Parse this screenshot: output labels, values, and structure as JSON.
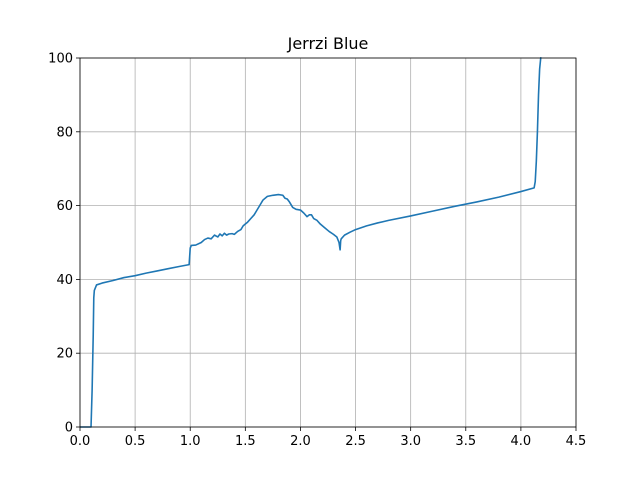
{
  "chart_data": {
    "type": "line",
    "title": "Jerrzi Blue",
    "xlabel": "",
    "ylabel": "",
    "xlim": [
      0.0,
      4.5
    ],
    "ylim": [
      0,
      100
    ],
    "grid": true,
    "x_ticks": [
      "0.0",
      "0.5",
      "1.0",
      "1.5",
      "2.0",
      "2.5",
      "3.0",
      "3.5",
      "4.0",
      "4.5"
    ],
    "y_ticks": [
      "0",
      "20",
      "40",
      "60",
      "80",
      "100"
    ],
    "series": [
      {
        "color": "#1f77b4",
        "x": [
          0.0,
          0.09,
          0.1,
          0.11,
          0.12,
          0.125,
          0.13,
          0.15,
          0.2,
          0.3,
          0.4,
          0.5,
          0.6,
          0.7,
          0.8,
          0.9,
          0.99,
          1.0,
          1.01,
          1.05,
          1.1,
          1.13,
          1.16,
          1.19,
          1.22,
          1.25,
          1.27,
          1.29,
          1.31,
          1.33,
          1.35,
          1.38,
          1.4,
          1.43,
          1.46,
          1.48,
          1.5,
          1.52,
          1.55,
          1.58,
          1.6,
          1.63,
          1.66,
          1.7,
          1.75,
          1.8,
          1.84,
          1.86,
          1.88,
          1.9,
          1.93,
          1.96,
          2.0,
          2.03,
          2.06,
          2.08,
          2.1,
          2.12,
          2.15,
          2.18,
          2.22,
          2.26,
          2.3,
          2.33,
          2.35,
          2.36,
          2.365,
          2.37,
          2.4,
          2.45,
          2.5,
          2.6,
          2.7,
          2.8,
          3.0,
          3.2,
          3.4,
          3.6,
          3.8,
          4.0,
          4.12,
          4.13,
          4.14,
          4.15,
          4.16,
          4.17,
          4.18
        ],
        "y": [
          0,
          0,
          0,
          10,
          25,
          35,
          37,
          38.5,
          39.0,
          39.7,
          40.5,
          41.0,
          41.7,
          42.3,
          42.9,
          43.5,
          44.0,
          48.5,
          49.2,
          49.3,
          50.0,
          50.8,
          51.2,
          51.0,
          52.0,
          51.5,
          52.3,
          51.8,
          52.5,
          52.0,
          52.3,
          52.4,
          52.2,
          53.0,
          53.5,
          54.5,
          55.0,
          55.5,
          56.5,
          57.5,
          58.5,
          60.0,
          61.5,
          62.5,
          62.8,
          63.0,
          62.8,
          62.0,
          61.8,
          61.0,
          59.5,
          59.0,
          58.8,
          58.0,
          57.0,
          57.5,
          57.5,
          56.5,
          56.0,
          55.0,
          54.0,
          53.0,
          52.2,
          51.5,
          50.0,
          48.0,
          50.5,
          51.0,
          52.0,
          52.8,
          53.5,
          54.5,
          55.3,
          56.0,
          57.2,
          58.5,
          59.8,
          61.0,
          62.3,
          63.8,
          64.8,
          66.5,
          72,
          80,
          90,
          97,
          100
        ]
      }
    ]
  }
}
